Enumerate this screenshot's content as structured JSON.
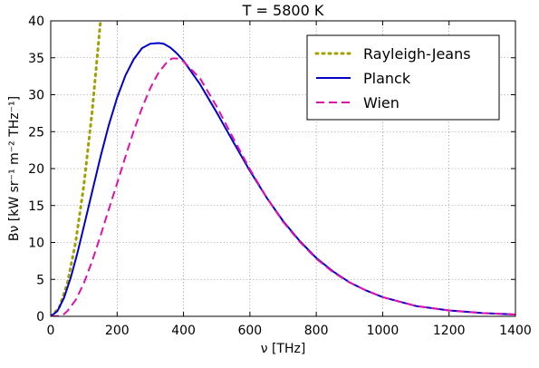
{
  "chart_data": {
    "type": "line",
    "title": "T = 5800 K",
    "xlabel": "ν [THz]",
    "ylabel": "Bν [kW sr⁻¹ m⁻² THz⁻¹]",
    "xlim": [
      0,
      1400
    ],
    "ylim": [
      0,
      40
    ],
    "xticks": [
      "0",
      "200",
      "400",
      "600",
      "800",
      "1000",
      "1200",
      "1400"
    ],
    "xtick_values": [
      0,
      200,
      400,
      600,
      800,
      1000,
      1200,
      1400
    ],
    "yticks": [
      "0",
      "5",
      "10",
      "15",
      "20",
      "25",
      "30",
      "35",
      "40"
    ],
    "ytick_values": [
      0,
      5,
      10,
      15,
      20,
      25,
      30,
      35,
      40
    ],
    "grid": true,
    "legend_position": "top-right",
    "series": [
      {
        "name": "Rayleigh-Jeans",
        "color": "#a0a000",
        "style": "dotted",
        "x": [
          0,
          25,
          50,
          75,
          100,
          125,
          150
        ],
        "y": [
          0,
          1.11,
          4.45,
          10.01,
          17.8,
          27.8,
          40.0
        ]
      },
      {
        "name": "Planck",
        "color": "#0000cc",
        "style": "solid",
        "x": [
          0,
          20,
          40,
          60,
          80,
          100,
          125,
          150,
          175,
          200,
          225,
          250,
          275,
          300,
          325,
          340,
          360,
          380,
          400,
          450,
          500,
          550,
          600,
          650,
          700,
          750,
          800,
          850,
          900,
          950,
          1000,
          1100,
          1200,
          1300,
          1400
        ],
        "y": [
          0,
          0.7,
          2.5,
          5.2,
          8.5,
          12.2,
          16.9,
          21.6,
          25.9,
          29.6,
          32.6,
          34.8,
          36.3,
          36.9,
          37.0,
          36.9,
          36.4,
          35.6,
          34.6,
          31.4,
          27.6,
          23.6,
          19.7,
          16.1,
          12.9,
          10.2,
          7.9,
          6.1,
          4.6,
          3.5,
          2.6,
          1.4,
          0.8,
          0.45,
          0.25
        ]
      },
      {
        "name": "Wien",
        "color": "#dd11aa",
        "style": "dashed",
        "x": [
          0,
          25,
          40,
          50,
          75,
          100,
          125,
          150,
          175,
          200,
          225,
          250,
          275,
          300,
          325,
          350,
          365,
          380,
          400,
          450,
          500,
          550,
          600,
          650,
          700,
          750,
          800,
          850,
          900,
          950,
          1000,
          1100,
          1200,
          1300,
          1400
        ],
        "y": [
          0,
          0.05,
          0.3,
          0.7,
          2.2,
          4.5,
          7.5,
          10.9,
          14.5,
          18.0,
          21.6,
          25.1,
          28.2,
          30.9,
          33.0,
          34.4,
          34.9,
          34.9,
          34.5,
          32.2,
          28.4,
          24.1,
          19.9,
          16.1,
          12.8,
          10.1,
          7.8,
          6.0,
          4.6,
          3.5,
          2.6,
          1.4,
          0.8,
          0.45,
          0.25
        ]
      }
    ]
  }
}
